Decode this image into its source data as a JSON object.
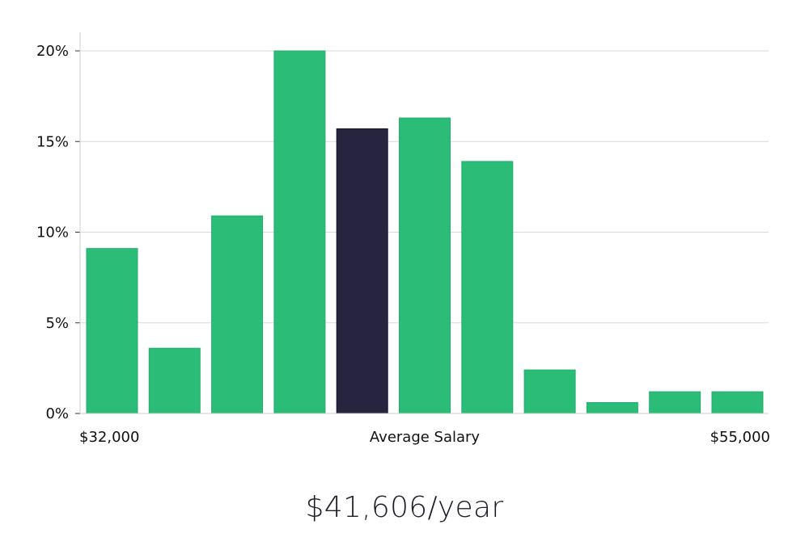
{
  "chart_data": {
    "type": "bar",
    "title": "",
    "xlabel": "Average Salary",
    "ylabel": "",
    "x_range_labels": {
      "min": "$32,000",
      "max": "$55,000"
    },
    "values": [
      9.1,
      3.6,
      10.9,
      20.0,
      15.7,
      16.3,
      13.9,
      2.4,
      0.6,
      1.2,
      1.2
    ],
    "highlight_index": 4,
    "ylim": [
      0,
      20
    ],
    "y_ticks": [
      0,
      5,
      10,
      15,
      20
    ],
    "y_tick_labels": [
      "0%",
      "5%",
      "10%",
      "15%",
      "20%"
    ],
    "grid": "horizontal",
    "legend": "none",
    "colors": {
      "bar": "#2bbd77",
      "highlight": "#26243f",
      "grid": "#d9d9d9",
      "axis": "#cfcfcf"
    }
  },
  "caption": "$41,606/year"
}
